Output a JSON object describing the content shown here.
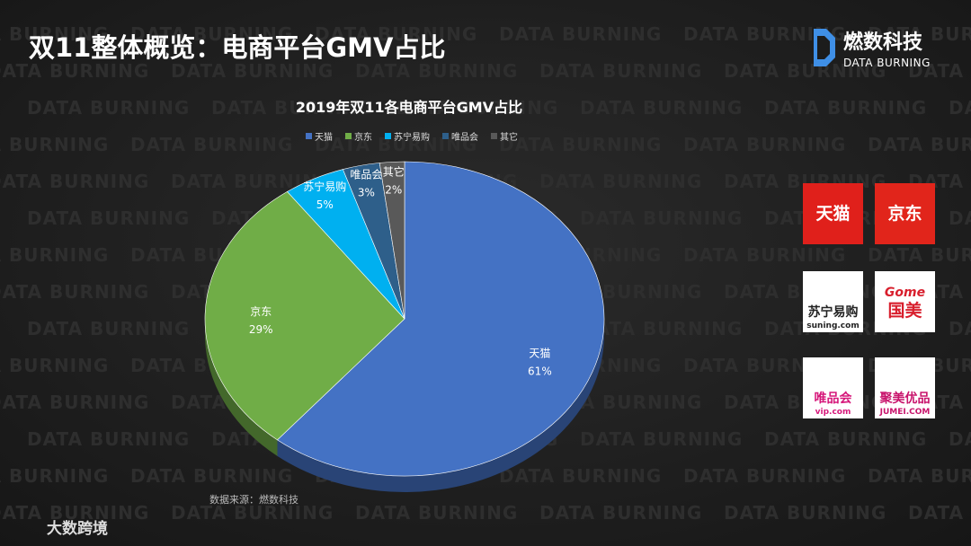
{
  "slide": {
    "title": "双11整体概览：电商平台GMV占比",
    "brand_name": "燃数科技",
    "brand_sub": "DATA BURNING",
    "watermark": "DATA BURNING",
    "source": "数据来源：燃数科技",
    "footer": "大数跨境"
  },
  "logos": [
    {
      "name": "天猫"
    },
    {
      "name": "京东"
    },
    {
      "name": "苏宁易购",
      "sub": "suning.com"
    },
    {
      "name": "国美",
      "sub": "Gome"
    },
    {
      "name": "唯品会",
      "sub": "vip.com"
    },
    {
      "name": "聚美优品",
      "sub": "JUMEI.COM"
    }
  ],
  "chart_data": {
    "type": "pie",
    "title": "2019年双11各电商平台GMV占比",
    "categories": [
      "天猫",
      "京东",
      "苏宁易购",
      "唯品会",
      "其它"
    ],
    "values": [
      61,
      29,
      5,
      3,
      2
    ],
    "value_labels": [
      "61%",
      "29%",
      "5%",
      "3%",
      "2%"
    ],
    "colors": [
      "#4472c4",
      "#70ad47",
      "#00b0f0",
      "#2e5f8a",
      "#595959"
    ]
  }
}
